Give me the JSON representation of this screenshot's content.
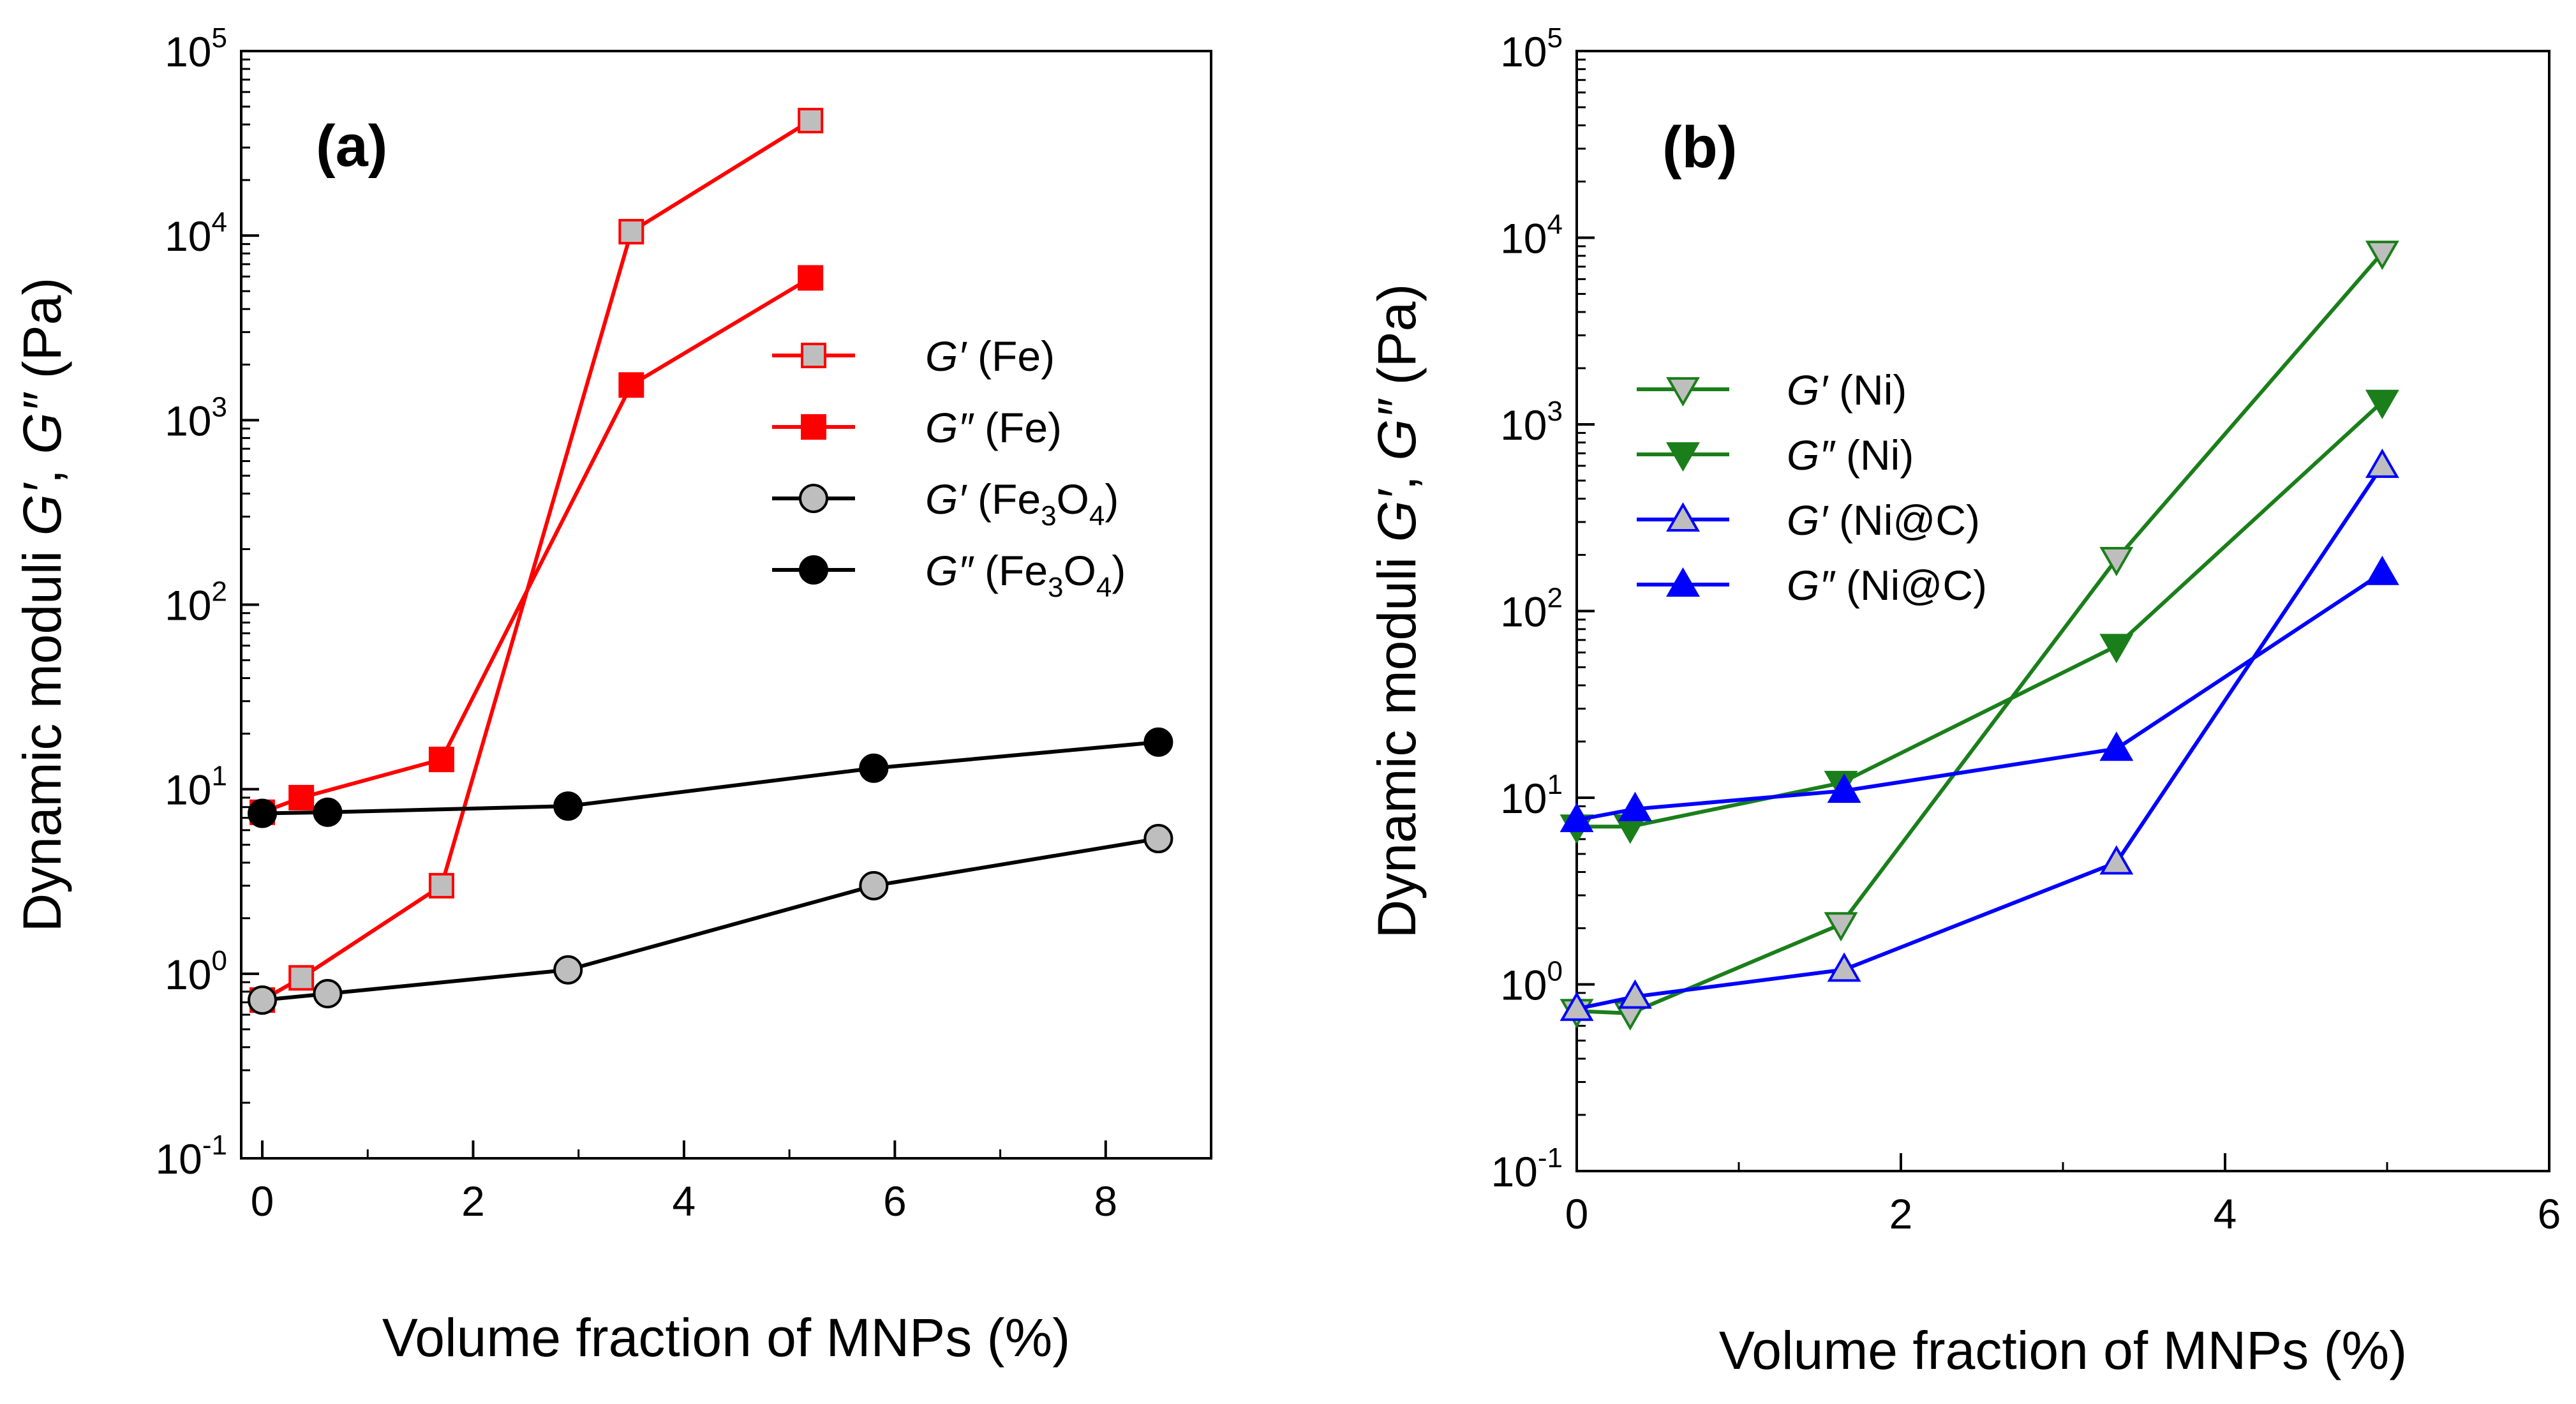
{
  "chart_data": [
    {
      "type": "line",
      "panel_label": "(a)",
      "xlabel": "Volume fraction of MNPs (%)",
      "ylabel": "Dynamic moduli G′, G″ (Pa)",
      "ylabel_parts": [
        "Dynamic moduli ",
        "G′",
        ", ",
        "G″",
        " (Pa)"
      ],
      "xlim": [
        -0.2,
        9
      ],
      "ylim": [
        0.1,
        100000
      ],
      "yscale": "log",
      "xticks": [
        0,
        2,
        4,
        6,
        8
      ],
      "xtick_labels": [
        "0",
        "2",
        "4",
        "6",
        "8"
      ],
      "ytick_exponents": [
        "-1",
        "0",
        "1",
        "2",
        "3",
        "4",
        "5"
      ],
      "legend_position": "center-right",
      "series": [
        {
          "name": "G′ (Fe)",
          "name_prefix": "G′",
          "name_main": "(Fe",
          "name_sub": "",
          "name_suffix": ")",
          "color": "#ff0000",
          "marker": "square",
          "fill": "#bebebe",
          "x": [
            0,
            0.37,
            1.7,
            3.5,
            5.2
          ],
          "y": [
            0.72,
            0.95,
            3.0,
            10500,
            42000
          ]
        },
        {
          "name": "G″ (Fe)",
          "name_prefix": "G″",
          "name_main": "(Fe",
          "name_sub": "",
          "name_suffix": ")",
          "color": "#ff0000",
          "marker": "square",
          "fill": "#ff0000",
          "x": [
            0,
            0.37,
            1.7,
            3.5,
            5.2
          ],
          "y": [
            7.5,
            9.0,
            14.5,
            1550,
            5900
          ]
        },
        {
          "name": "G′ (Fe3O4)",
          "name_prefix": "G′",
          "name_main": "(Fe",
          "name_sub": "3",
          "name_mid": "O",
          "name_sub2": "4",
          "name_suffix": ")",
          "color": "#000000",
          "marker": "circle",
          "fill": "#bebebe",
          "x": [
            0,
            0.62,
            2.9,
            5.8,
            8.5
          ],
          "y": [
            0.72,
            0.78,
            1.05,
            3.0,
            5.4
          ]
        },
        {
          "name": "G″ (Fe3O4)",
          "name_prefix": "G″",
          "name_main": "(Fe",
          "name_sub": "3",
          "name_mid": "O",
          "name_sub2": "4",
          "name_suffix": ")",
          "color": "#000000",
          "marker": "circle",
          "fill": "#000000",
          "x": [
            0,
            0.62,
            2.9,
            5.8,
            8.5
          ],
          "y": [
            7.4,
            7.5,
            8.1,
            13.0,
            18.0
          ]
        }
      ]
    },
    {
      "type": "line",
      "panel_label": "(b)",
      "xlabel": "Volume fraction of MNPs (%)",
      "ylabel": "Dynamic moduli G′, G″ (Pa)",
      "ylabel_parts": [
        "Dynamic moduli ",
        "G′",
        ", ",
        "G″",
        " (Pa)"
      ],
      "xlim": [
        0,
        6
      ],
      "ylim": [
        0.1,
        100000
      ],
      "yscale": "log",
      "xticks": [
        0,
        2,
        4,
        6
      ],
      "xtick_labels": [
        "0",
        "2",
        "4",
        "6"
      ],
      "ytick_exponents": [
        "-1",
        "0",
        "1",
        "2",
        "3",
        "4",
        "5"
      ],
      "legend_position": "center-left",
      "series": [
        {
          "name": "G′ (Ni)",
          "name_prefix": "G′",
          "name_main": "(Ni)",
          "color": "#1a7f1a",
          "marker": "triangle-down",
          "fill": "#bebebe",
          "x": [
            0,
            0.33,
            1.63,
            3.33,
            4.97
          ],
          "y": [
            0.72,
            0.7,
            2.1,
            190,
            8300
          ]
        },
        {
          "name": "G″ (Ni)",
          "name_prefix": "G″",
          "name_main": "(Ni)",
          "color": "#1a7f1a",
          "marker": "triangle-down",
          "fill": "#1a7f1a",
          "x": [
            0,
            0.33,
            1.63,
            3.33,
            4.97
          ],
          "y": [
            7.0,
            7.0,
            12.0,
            65,
            1320
          ]
        },
        {
          "name": "G′ (Ni@C)",
          "name_prefix": "G′",
          "name_main": "(Ni@C)",
          "color": "#0000ff",
          "marker": "triangle-up",
          "fill": "#bebebe",
          "x": [
            0,
            0.36,
            1.65,
            3.33,
            4.97
          ],
          "y": [
            0.74,
            0.86,
            1.2,
            4.5,
            600
          ]
        },
        {
          "name": "G″ (Ni@C)",
          "name_prefix": "G″",
          "name_main": "(Ni@C)",
          "color": "#0000ff",
          "marker": "triangle-up",
          "fill": "#0000ff",
          "x": [
            0,
            0.36,
            1.65,
            3.33,
            4.97
          ],
          "y": [
            7.6,
            8.7,
            10.9,
            18.3,
            160
          ]
        }
      ]
    }
  ]
}
